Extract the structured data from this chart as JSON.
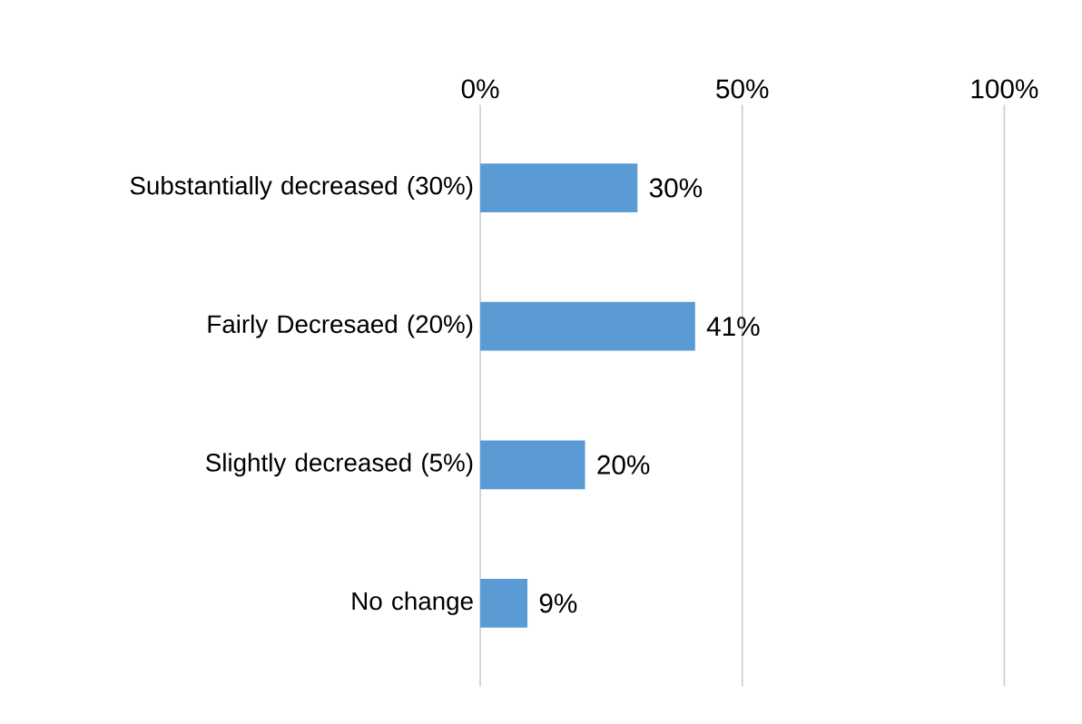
{
  "chart_data": {
    "type": "bar",
    "orientation": "horizontal",
    "categories": [
      "Substantially decreased (30%)",
      "Fairly Decresaed (20%)",
      "Slightly decreased (5%)",
      "No change"
    ],
    "values": [
      30,
      41,
      20,
      9
    ],
    "value_labels": [
      "30%",
      "41%",
      "20%",
      "9%"
    ],
    "color": "#5b9bd5",
    "xlim": [
      0,
      100
    ],
    "xticks": [
      {
        "value": 0,
        "label": "0%"
      },
      {
        "value": 50,
        "label": "50%"
      },
      {
        "value": 100,
        "label": "100%"
      }
    ],
    "grid": "x"
  }
}
